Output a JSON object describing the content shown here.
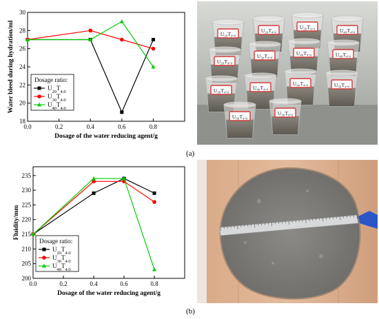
{
  "panels": [
    {
      "label": "(a)"
    },
    {
      "label": "(b)"
    }
  ],
  "chart_data": [
    {
      "type": "line",
      "x": [
        0.0,
        0.4,
        0.6,
        0.8
      ],
      "xlabel": "Dosage of the water reducing agent/g",
      "ylabel": "Water bleed during hydration/ml",
      "xlim": [
        0.0,
        1.0
      ],
      "ylim": [
        18,
        30
      ],
      "xticks": [
        "0.0",
        "0.2",
        "0.4",
        "0.6",
        "0.8"
      ],
      "yticks": [
        "18",
        "20",
        "22",
        "24",
        "26",
        "28",
        "30"
      ],
      "legend_title": "Dosage ratio:",
      "legend_position": "lower-left",
      "grid": false,
      "series": [
        {
          "name": "U20T4.0",
          "base": "U",
          "sub1": "20",
          "mid": "T",
          "sub2": "4.0",
          "color": "#000000",
          "marker": "square",
          "values": [
            27,
            27,
            19,
            27
          ]
        },
        {
          "name": "U30T4.0",
          "base": "U",
          "sub1": "30",
          "mid": "T",
          "sub2": "4.0",
          "color": "#ff0000",
          "marker": "circle",
          "values": [
            27,
            28,
            27,
            26
          ]
        },
        {
          "name": "U40T4.0",
          "base": "U",
          "sub1": "40",
          "mid": "T",
          "sub2": "4.0",
          "color": "#00cc00",
          "marker": "triangle",
          "values": [
            27,
            27,
            29,
            24
          ]
        }
      ]
    },
    {
      "type": "line",
      "x": [
        0.0,
        0.4,
        0.6,
        0.8
      ],
      "xlabel": "Dosage of the water reducing agent/g",
      "ylabel": "Fluidity/mm",
      "xlim": [
        0.0,
        1.0
      ],
      "ylim": [
        200,
        238
      ],
      "xticks": [
        "0.0",
        "0.2",
        "0.4",
        "0.6",
        "0.8"
      ],
      "yticks": [
        "200",
        "205",
        "210",
        "215",
        "220",
        "225",
        "230",
        "235"
      ],
      "legend_title": "Dosage ratio:",
      "legend_position": "lower-left",
      "grid": false,
      "series": [
        {
          "name": "U20T4.0",
          "base": "U",
          "sub1": "20",
          "mid": "T",
          "sub2": "4.0",
          "color": "#000000",
          "marker": "square",
          "values": [
            215,
            229,
            234,
            229
          ]
        },
        {
          "name": "U30T4.0",
          "base": "U",
          "sub1": "30",
          "mid": "T",
          "sub2": "4.0",
          "color": "#ff0000",
          "marker": "circle",
          "values": [
            215,
            233,
            233,
            226
          ]
        },
        {
          "name": "U40T4.0",
          "base": "U",
          "sub1": "40",
          "mid": "T",
          "sub2": "4.0",
          "color": "#00cc00",
          "marker": "triangle",
          "values": [
            215,
            234,
            234,
            203
          ]
        }
      ]
    }
  ],
  "photo_a": {
    "cup_labels": [
      "U₂₀T₄.₀",
      "U₂₀T₄.₀",
      "U₂₀T₄.₀",
      "U₄₀T₄.₀",
      "U₂₀T₄.₀",
      "U₃₀T₄.₀",
      "U₄₀T₄.₀",
      "U₄₀T₄.₀",
      "U₃₀T₄.₀",
      "U₄₀T₄.₀",
      "U₄₀T₄.₀",
      "U₃₀T₄.₀",
      "U₃₀T₄.₀",
      "U₂₀T₄.₀"
    ]
  }
}
